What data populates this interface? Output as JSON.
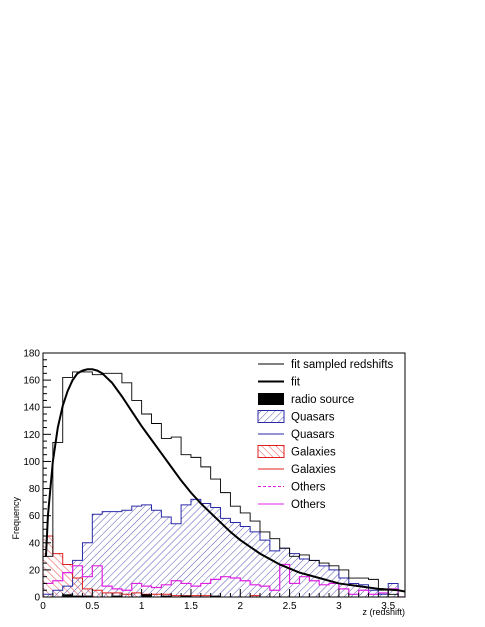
{
  "chart_data": {
    "type": "histogram",
    "xlabel": "z (redshift)",
    "ylabel": "Frequency",
    "xlim": [
      0,
      3.67
    ],
    "ylim": [
      0,
      180
    ],
    "x_ticks": [
      0,
      0.5,
      1,
      1.5,
      2,
      2.5,
      3,
      3.5
    ],
    "x_tick_labels": [
      "0",
      "0.5",
      "1",
      "1.5",
      "2",
      "2.5",
      "3",
      "3.5"
    ],
    "y_ticks": [
      0,
      20,
      40,
      60,
      80,
      100,
      120,
      140,
      160,
      180
    ],
    "y_tick_labels": [
      "0",
      "20",
      "40",
      "60",
      "80",
      "100",
      "120",
      "140",
      "160",
      "180"
    ],
    "bin_width": 0.1,
    "legend": [
      {
        "label": "fit sampled redshifts",
        "style": "line",
        "color": "#000000"
      },
      {
        "label": "fit",
        "style": "line-bold",
        "color": "#000000"
      },
      {
        "label": "radio source",
        "style": "fill",
        "color": "#000000"
      },
      {
        "label": "Quasars",
        "style": "hatch",
        "color": "#2a2aa8"
      },
      {
        "label": "Quasars",
        "style": "line",
        "color": "#2a2aa8"
      },
      {
        "label": "Galaxies",
        "style": "hatch",
        "color": "#e02020"
      },
      {
        "label": "Galaxies",
        "style": "line",
        "color": "#e02020"
      },
      {
        "label": "Others",
        "style": "dashed",
        "color": "#e020e0"
      },
      {
        "label": "Others",
        "style": "line",
        "color": "#e020e0"
      }
    ],
    "fit_curve": {
      "name": "fit",
      "x": [
        0.03,
        0.05,
        0.1,
        0.15,
        0.2,
        0.25,
        0.3,
        0.35,
        0.4,
        0.45,
        0.5,
        0.55,
        0.6,
        0.7,
        0.8,
        0.9,
        1.0,
        1.1,
        1.2,
        1.3,
        1.4,
        1.5,
        1.6,
        1.7,
        1.8,
        1.9,
        2.0,
        2.2,
        2.4,
        2.6,
        2.8,
        3.0,
        3.2,
        3.4,
        3.6,
        3.67
      ],
      "y": [
        30,
        60,
        100,
        125,
        141,
        152,
        160,
        165,
        167,
        168,
        168,
        167,
        165,
        158,
        148,
        137,
        126,
        116,
        106,
        96,
        86,
        77,
        69,
        62,
        55,
        48,
        42,
        32,
        24,
        18,
        14,
        10,
        8,
        6,
        5,
        4
      ]
    },
    "series": [
      {
        "name": "fit sampled redshifts",
        "color": "#000000",
        "values": [
          30,
          114,
          162,
          166,
          166,
          164,
          165,
          165,
          158,
          145,
          135,
          128,
          117,
          118,
          105,
          103,
          96,
          87,
          77,
          67,
          62,
          56,
          48,
          43,
          36,
          30,
          31,
          27,
          25,
          23,
          20,
          14,
          14,
          13,
          5,
          2,
          0
        ]
      },
      {
        "name": "Quasars",
        "color": "#2a2aa8",
        "values": [
          2,
          5,
          8,
          27,
          40,
          61,
          63,
          63,
          64,
          67,
          68,
          64,
          59,
          54,
          68,
          72,
          69,
          66,
          58,
          55,
          52,
          48,
          42,
          34,
          36,
          32,
          28,
          27,
          23,
          20,
          14,
          10,
          9,
          5,
          2,
          10,
          0
        ]
      },
      {
        "name": "Galaxies",
        "color": "#e02020",
        "values": [
          45,
          32,
          24,
          14,
          6,
          5,
          3,
          3,
          2,
          3,
          2,
          2,
          2,
          1,
          1,
          1,
          1,
          0,
          0,
          0,
          0,
          1,
          0,
          0,
          0,
          0,
          0,
          0,
          0,
          0,
          0,
          0,
          0,
          0,
          0,
          0,
          0
        ]
      },
      {
        "name": "Others",
        "color": "#e020e0",
        "values": [
          10,
          12,
          18,
          23,
          15,
          23,
          8,
          6,
          5,
          10,
          8,
          7,
          9,
          12,
          10,
          8,
          10,
          13,
          15,
          14,
          12,
          9,
          8,
          5,
          24,
          10,
          15,
          12,
          9,
          10,
          6,
          2,
          5,
          2,
          3,
          6,
          0
        ]
      },
      {
        "name": "radio source",
        "color": "#000000",
        "values": [
          0,
          0,
          2,
          1,
          1,
          0,
          0,
          1,
          0,
          0,
          2,
          0,
          1,
          0,
          1,
          0,
          0,
          1,
          0,
          0,
          0,
          0,
          0,
          0,
          0,
          0,
          0,
          0,
          0,
          0,
          0,
          0,
          0,
          0,
          0,
          0,
          0
        ]
      }
    ]
  }
}
